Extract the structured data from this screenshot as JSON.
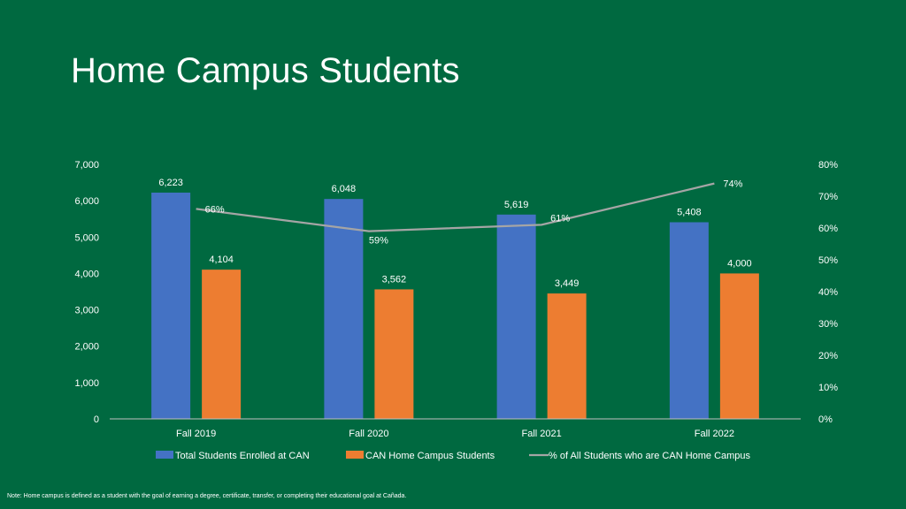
{
  "slide": {
    "title": "Home Campus Students",
    "note": "Note:  Home campus is defined as a student with the goal of earning a degree, certificate, transfer, or completing their educational goal at Cañada."
  },
  "chart_data": {
    "type": "bar",
    "categories": [
      "Fall 2019",
      "Fall 2020",
      "Fall 2021",
      "Fall 2022"
    ],
    "series": [
      {
        "name": "Total Students Enrolled at CAN",
        "type": "bar",
        "axis": "left",
        "values": [
          6223,
          6048,
          5619,
          5408
        ],
        "labels": [
          "6,223",
          "6,048",
          "5,619",
          "5,408"
        ],
        "color": "#4472C4"
      },
      {
        "name": "CAN Home Campus Students",
        "type": "bar",
        "axis": "left",
        "values": [
          4104,
          3562,
          3449,
          4000
        ],
        "labels": [
          "4,104",
          "3,562",
          "3,449",
          "4,000"
        ],
        "color": "#ED7D31"
      },
      {
        "name": "% of All Students who are CAN Home Campus",
        "type": "line",
        "axis": "right",
        "values": [
          66,
          59,
          61,
          74
        ],
        "labels": [
          "66%",
          "59%",
          "61%",
          "74%"
        ],
        "color": "#A5A5A5"
      }
    ],
    "y_left": {
      "min": 0,
      "max": 7000,
      "ticks": [
        "0",
        "1,000",
        "2,000",
        "3,000",
        "4,000",
        "5,000",
        "6,000",
        "7,000"
      ]
    },
    "y_right": {
      "min": 0,
      "max": 80,
      "ticks": [
        "0%",
        "10%",
        "20%",
        "30%",
        "40%",
        "50%",
        "60%",
        "70%",
        "80%"
      ]
    },
    "grid": false,
    "legend": "bottom",
    "axis_color": "#BFBFBF"
  }
}
